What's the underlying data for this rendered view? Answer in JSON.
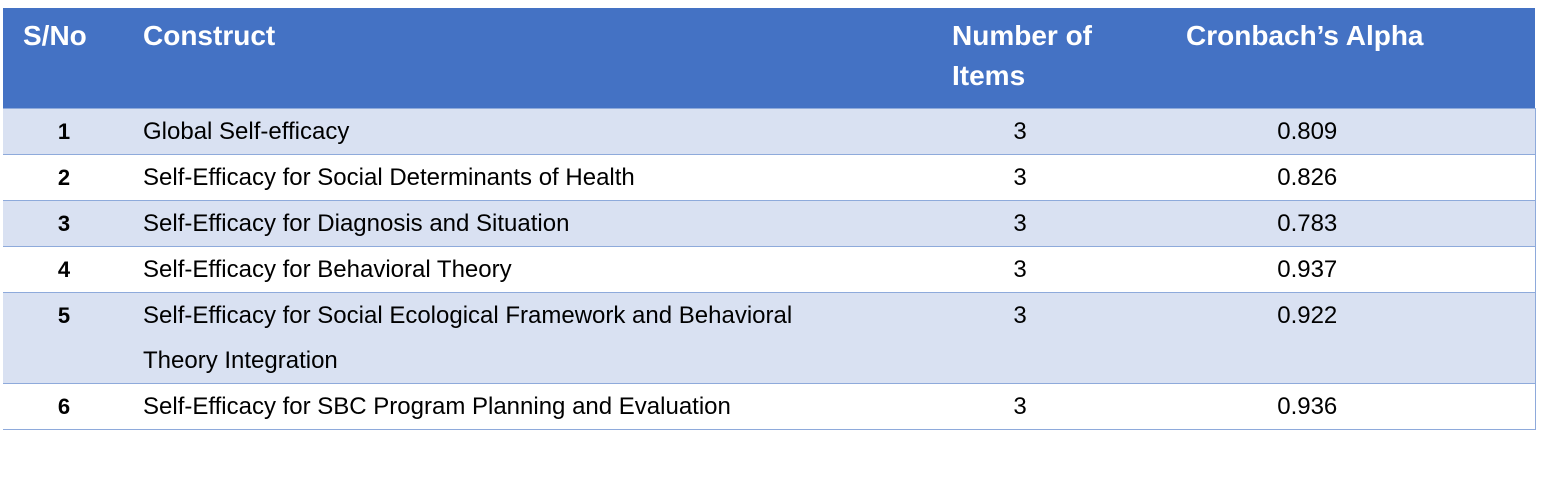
{
  "table": {
    "headers": [
      "S/No",
      "Construct",
      "Number of Items",
      "Cronbach’s Alpha"
    ],
    "rows": [
      [
        1,
        "Global Self-efficacy",
        3,
        0.809
      ],
      [
        2,
        "Self-Efficacy for Social Determinants of Health",
        3,
        0.826
      ],
      [
        3,
        "Self-Efficacy for Diagnosis and Situation",
        3,
        0.783
      ],
      [
        4,
        "Self-Efficacy for Behavioral Theory",
        3,
        0.937
      ],
      [
        5,
        "Self-Efficacy for Social Ecological Framework and Behavioral Theory Integration",
        3,
        0.922
      ],
      [
        6,
        "Self-Efficacy for SBC Program Planning and Evaluation",
        3,
        0.936
      ]
    ]
  }
}
